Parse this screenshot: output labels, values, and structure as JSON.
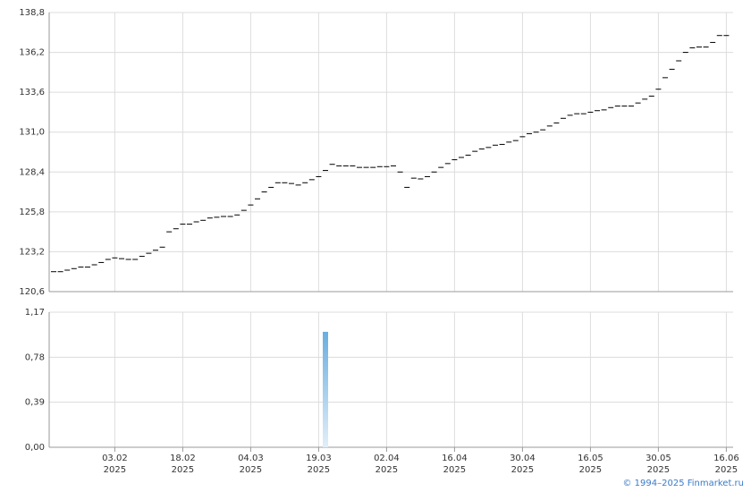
{
  "chart_data": [
    {
      "type": "dash",
      "color": "#000000",
      "grid": true,
      "ylim": [
        120.6,
        138.8
      ],
      "yticks": [
        {
          "value": 120.6,
          "label": "120,6"
        },
        {
          "value": 123.2,
          "label": "123,2"
        },
        {
          "value": 125.8,
          "label": "125,8"
        },
        {
          "value": 128.4,
          "label": "128,4"
        },
        {
          "value": 131.0,
          "label": "131,0"
        },
        {
          "value": 133.6,
          "label": "133,6"
        },
        {
          "value": 136.2,
          "label": "136,2"
        },
        {
          "value": 138.8,
          "label": "138,8"
        }
      ],
      "values": [
        121.9,
        121.9,
        122.0,
        122.1,
        122.2,
        122.2,
        122.35,
        122.5,
        122.7,
        122.8,
        122.75,
        122.7,
        122.7,
        122.9,
        123.1,
        123.3,
        123.5,
        124.5,
        124.7,
        125.0,
        125.0,
        125.15,
        125.25,
        125.4,
        125.45,
        125.5,
        125.5,
        125.6,
        125.9,
        126.25,
        126.65,
        127.1,
        127.4,
        127.7,
        127.7,
        127.65,
        127.55,
        127.7,
        127.9,
        128.1,
        128.5,
        128.9,
        128.8,
        128.8,
        128.8,
        128.7,
        128.7,
        128.7,
        128.75,
        128.75,
        128.8,
        128.4,
        127.4,
        128.0,
        127.95,
        128.1,
        128.4,
        128.7,
        128.95,
        129.2,
        129.35,
        129.5,
        129.75,
        129.9,
        130.0,
        130.15,
        130.2,
        130.35,
        130.45,
        130.7,
        130.9,
        131.0,
        131.15,
        131.4,
        131.6,
        131.9,
        132.1,
        132.2,
        132.2,
        132.3,
        132.4,
        132.45,
        132.6,
        132.7,
        132.7,
        132.7,
        132.9,
        133.15,
        133.35,
        133.8,
        134.55,
        135.1,
        135.65,
        136.2,
        136.5,
        136.55,
        136.55,
        136.85,
        137.3,
        137.3
      ]
    },
    {
      "type": "bar",
      "color": "#6aaee0",
      "grid": true,
      "ylim": [
        0,
        1.17
      ],
      "yticks": [
        {
          "value": 0,
          "label": "0,00"
        },
        {
          "value": 0.39,
          "label": "0,39"
        },
        {
          "value": 0.78,
          "label": "0,78"
        },
        {
          "value": 1.17,
          "label": "1,17"
        }
      ],
      "categories": [
        null,
        null,
        null,
        null,
        null,
        null,
        null,
        null,
        null,
        "03.02 2025",
        null,
        null,
        null,
        null,
        null,
        null,
        null,
        null,
        null,
        "18.02 2025",
        null,
        null,
        null,
        null,
        null,
        null,
        null,
        null,
        null,
        "04.03 2025",
        null,
        null,
        null,
        null,
        null,
        null,
        null,
        null,
        null,
        "19.03 2025",
        null,
        null,
        null,
        null,
        null,
        null,
        null,
        null,
        null,
        "02.04 2025",
        null,
        null,
        null,
        null,
        null,
        null,
        null,
        null,
        null,
        "16.04 2025",
        null,
        null,
        null,
        null,
        null,
        null,
        null,
        null,
        null,
        "30.04 2025",
        null,
        null,
        null,
        null,
        null,
        null,
        null,
        null,
        null,
        "16.05 2025",
        null,
        null,
        null,
        null,
        null,
        null,
        null,
        null,
        null,
        "30.05 2025",
        null,
        null,
        null,
        null,
        null,
        null,
        null,
        null,
        null,
        "16.06 2025"
      ],
      "values": [
        0,
        0,
        0,
        0,
        0,
        0,
        0,
        0,
        0,
        0,
        0,
        0,
        0,
        0,
        0,
        0,
        0,
        0,
        0,
        0,
        0,
        0,
        0,
        0,
        0,
        0,
        0,
        0,
        0,
        0,
        0,
        0,
        0,
        0,
        0,
        0,
        0,
        0,
        0,
        0,
        1.0,
        0,
        0,
        0,
        0,
        0,
        0,
        0,
        0,
        0,
        0,
        0,
        0,
        0,
        0,
        0,
        0,
        0,
        0,
        0,
        0,
        0,
        0,
        0,
        0,
        0,
        0,
        0,
        0,
        0,
        0,
        0,
        0,
        0,
        0,
        0,
        0,
        0,
        0,
        0,
        0,
        0,
        0,
        0,
        0,
        0,
        0,
        0,
        0,
        0,
        0,
        0,
        0,
        0,
        0,
        0,
        0,
        0,
        0,
        0
      ]
    }
  ],
  "credit": "© 1994–2025 Finmarket.ru"
}
